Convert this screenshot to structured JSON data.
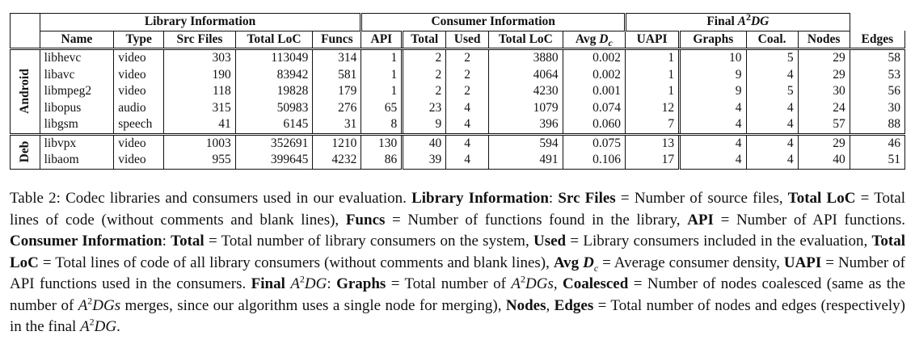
{
  "table": {
    "groups": {
      "library": "Library Information",
      "consumer": "Consumer Information",
      "final_prefix": "Final ",
      "final_A": "A",
      "final_sup": "2",
      "final_DG": "DG"
    },
    "columns": {
      "name": "Name",
      "type": "Type",
      "src_files": "Src Files",
      "total_loc": "Total LoC",
      "funcs": "Funcs",
      "api": "API",
      "total": "Total",
      "used": "Used",
      "consumer_total_loc": "Total LoC",
      "avg_d_prefix": "Avg ",
      "avg_d_D": "D",
      "avg_d_sub": "c",
      "uapi": "UAPI",
      "graphs": "Graphs",
      "coal": "Coal.",
      "nodes": "Nodes",
      "edges": "Edges"
    },
    "sections": [
      {
        "label": "Android",
        "rows": [
          [
            "libhevc",
            "video",
            "303",
            "113049",
            "314",
            "1",
            "2",
            "2",
            "3880",
            "0.002",
            "1",
            "10",
            "5",
            "29",
            "58"
          ],
          [
            "libavc",
            "video",
            "190",
            "83942",
            "581",
            "1",
            "2",
            "2",
            "4064",
            "0.002",
            "1",
            "9",
            "4",
            "29",
            "53"
          ],
          [
            "libmpeg2",
            "video",
            "118",
            "19828",
            "179",
            "1",
            "2",
            "2",
            "4230",
            "0.001",
            "1",
            "9",
            "5",
            "30",
            "56"
          ],
          [
            "libopus",
            "audio",
            "315",
            "50983",
            "276",
            "65",
            "23",
            "4",
            "1079",
            "0.074",
            "12",
            "4",
            "4",
            "24",
            "30"
          ],
          [
            "libgsm",
            "speech",
            "41",
            "6145",
            "31",
            "8",
            "9",
            "4",
            "396",
            "0.060",
            "7",
            "4",
            "4",
            "57",
            "88"
          ]
        ]
      },
      {
        "label": "Deb",
        "rows": [
          [
            "libvpx",
            "video",
            "1003",
            "352691",
            "1210",
            "130",
            "40",
            "4",
            "594",
            "0.075",
            "13",
            "4",
            "4",
            "29",
            "46"
          ],
          [
            "libaom",
            "video",
            "955",
            "399645",
            "4232",
            "86",
            "39",
            "4",
            "491",
            "0.106",
            "17",
            "4",
            "4",
            "40",
            "51"
          ]
        ]
      }
    ]
  },
  "caption": {
    "t01": "Table 2: Codec libraries and consumers used in our evaluation. ",
    "b01": "Library Information",
    "t02": ": ",
    "b02": "Src Files",
    "t03": " = Number of source files, ",
    "b03": "Total LoC",
    "t04": " = Total lines of code (without comments and blank lines), ",
    "b04": "Funcs",
    "t05": " = Number of functions found in the library, ",
    "b05": "API",
    "t06": " = Number of API functions. ",
    "b06": "Consumer Information",
    "t07": ": ",
    "b07": "Total",
    "t08": " = Total number of library consumers on the system, ",
    "b08": "Used",
    "t09": " = Library consumers included in the evaluation, ",
    "b09": "Total LoC",
    "t10": " = Total lines of code of all library consumers (without comments and blank lines), ",
    "b10": "Avg ",
    "i01": "D",
    "s01": "c",
    "t11": " = Average consumer density, ",
    "b11": "UAPI",
    "t12": " = Number of API functions used in the consumers. ",
    "b12": "Final ",
    "i02": "A",
    "p01": "2",
    "i03": "DG",
    "t13": ": ",
    "b13": "Graphs",
    "t14": " = Total number of ",
    "i04": "A",
    "p02": "2",
    "i05": "DGs",
    "t15": ", ",
    "b14": "Coalesced",
    "t16": " = Number of nodes coalesced (same as the number of ",
    "i06": "A",
    "p03": "2",
    "i07": "DGs",
    "t17": " merges, since our algorithm uses a single node for merging), ",
    "b15": "Nodes",
    "t18": ", ",
    "b16": "Edges",
    "t19": " = Total number of nodes and edges (respectively) in the final ",
    "i08": "A",
    "p04": "2",
    "i09": "DG",
    "t20": "."
  }
}
